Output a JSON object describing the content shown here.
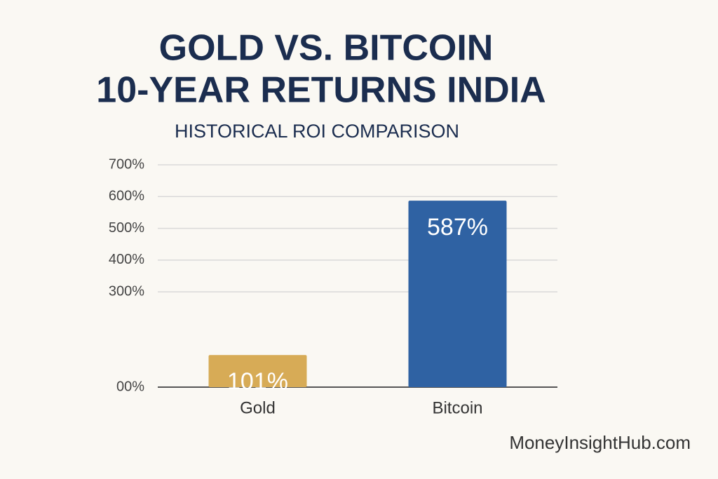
{
  "chart_data": {
    "type": "bar",
    "title": [
      "GOLD VS. BITCOIN",
      "10-YEAR RETURNS INDIA"
    ],
    "subtitle": "HISTORICAL ROI COMPARISON",
    "categories": [
      "Gold",
      "Bitcoin"
    ],
    "values": [
      101,
      587
    ],
    "value_labels": [
      "101%",
      "587%"
    ],
    "colors": [
      "#d7ab56",
      "#2f62a3"
    ],
    "ylim": [
      0,
      700
    ],
    "yticks": [
      {
        "value": 0,
        "label": "00%"
      },
      {
        "value": 300,
        "label": "300%"
      },
      {
        "value": 400,
        "label": "400%"
      },
      {
        "value": 500,
        "label": "500%"
      },
      {
        "value": 600,
        "label": "600%"
      },
      {
        "value": 700,
        "label": "700%"
      }
    ],
    "grid": true,
    "watermark": "MoneyInsightHub.com"
  }
}
